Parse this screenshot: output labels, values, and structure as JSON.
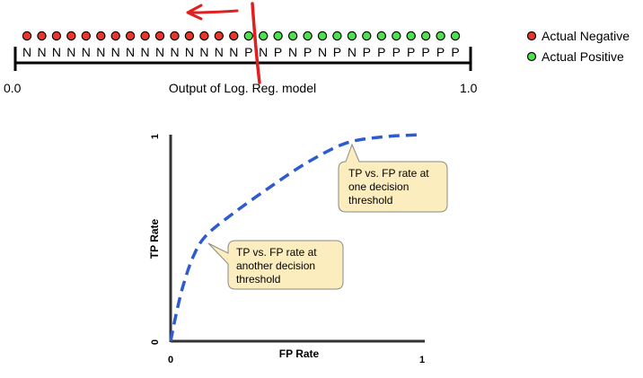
{
  "threshold_strip": {
    "labels": [
      "N",
      "N",
      "N",
      "N",
      "N",
      "N",
      "N",
      "N",
      "N",
      "N",
      "N",
      "N",
      "N",
      "N",
      "N",
      "P",
      "N",
      "P",
      "N",
      "P",
      "N",
      "P",
      "N",
      "P",
      "P",
      "P",
      "P",
      "P",
      "P",
      "P"
    ],
    "scale_min": "0.0",
    "scale_max": "1.0",
    "caption": "Output of Log. Reg. model"
  },
  "legend": {
    "items": [
      {
        "label": "Actual Negative",
        "color": "#e8372a"
      },
      {
        "label": "Actual Positive",
        "color": "#4ee04e"
      }
    ]
  },
  "chart_data": {
    "type": "line",
    "xlabel": "FP Rate",
    "ylabel": "TP Rate",
    "xlim": [
      0,
      1
    ],
    "ylim": [
      0,
      1
    ],
    "x_ticks": [
      "0",
      "1"
    ],
    "y_ticks": [
      "0",
      "1"
    ],
    "series": [
      {
        "style": "dashed",
        "color": "#2f5bd0",
        "points": [
          [
            0.0,
            0.0
          ],
          [
            0.02,
            0.12
          ],
          [
            0.05,
            0.27
          ],
          [
            0.09,
            0.41
          ],
          [
            0.14,
            0.51
          ],
          [
            0.25,
            0.62
          ],
          [
            0.4,
            0.75
          ],
          [
            0.55,
            0.87
          ],
          [
            0.7,
            0.96
          ],
          [
            0.85,
            0.99
          ],
          [
            1.0,
            1.0
          ]
        ]
      }
    ],
    "annotations": [
      {
        "text": [
          "TP vs. FP rate at",
          "one decision",
          "threshold"
        ],
        "x": 0.7,
        "y": 0.96
      },
      {
        "text": [
          "TP vs. FP rate at",
          "another decision",
          "threshold"
        ],
        "x": 0.14,
        "y": 0.51
      }
    ]
  }
}
